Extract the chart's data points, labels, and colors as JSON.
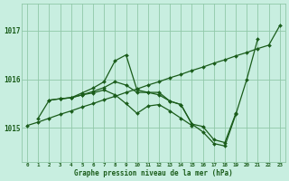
{
  "background_color": "#c8eee0",
  "grid_color": "#90c8a8",
  "line_color": "#1a5c1a",
  "title": "Graphe pression niveau de la mer (hPa)",
  "hours": [
    0,
    1,
    2,
    3,
    4,
    5,
    6,
    7,
    8,
    9,
    10,
    11,
    12,
    13,
    14,
    15,
    16,
    17,
    18,
    19,
    20,
    21,
    22,
    23
  ],
  "yticks": [
    1015,
    1016,
    1017
  ],
  "ylim": [
    1014.3,
    1017.55
  ],
  "series": [
    {
      "x": [
        0,
        1,
        2,
        3,
        4,
        5,
        6,
        7,
        8,
        9,
        10,
        11,
        12,
        13,
        14,
        15,
        16,
        17,
        18,
        19,
        20,
        21,
        22,
        23
      ],
      "y": [
        1015.05,
        1015.12,
        1015.2,
        1015.28,
        1015.35,
        1015.43,
        1015.5,
        1015.58,
        1015.65,
        1015.73,
        1015.8,
        1015.88,
        1015.95,
        1016.03,
        1016.1,
        1016.18,
        1016.25,
        1016.33,
        1016.4,
        1016.48,
        1016.55,
        1016.63,
        1016.7,
        1017.1
      ]
    },
    {
      "x": [
        1,
        2,
        3,
        4,
        5,
        6,
        7,
        8,
        9,
        10,
        11,
        12,
        13,
        14,
        15,
        16,
        17,
        18,
        19,
        20,
        21
      ],
      "y": [
        1015.2,
        1015.57,
        1015.6,
        1015.62,
        1015.72,
        1015.82,
        1015.95,
        1016.38,
        1016.5,
        1015.78,
        1015.73,
        1015.73,
        1015.55,
        1015.48,
        1015.08,
        1014.92,
        1014.68,
        1014.63,
        1015.28,
        1016.0,
        1016.83
      ]
    },
    {
      "x": [
        2,
        3,
        4,
        5,
        6,
        7,
        8,
        9,
        10,
        11,
        12,
        13,
        14,
        15,
        16,
        17,
        18,
        19
      ],
      "y": [
        1015.57,
        1015.6,
        1015.62,
        1015.68,
        1015.75,
        1015.83,
        1015.95,
        1015.88,
        1015.73,
        1015.73,
        1015.68,
        1015.55,
        1015.48,
        1015.08,
        1015.03,
        1014.76,
        1014.7,
        1015.3
      ]
    },
    {
      "x": [
        3,
        4,
        5,
        6,
        7,
        8,
        9,
        10,
        11,
        12,
        13,
        14,
        15
      ],
      "y": [
        1015.6,
        1015.62,
        1015.68,
        1015.72,
        1015.78,
        1015.68,
        1015.5,
        1015.3,
        1015.45,
        1015.48,
        1015.35,
        1015.2,
        1015.05
      ]
    }
  ]
}
